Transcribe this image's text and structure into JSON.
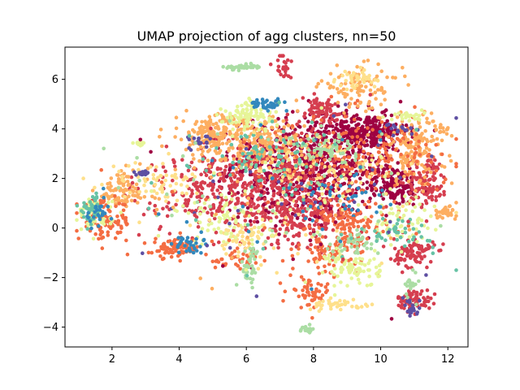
{
  "chart_data": {
    "type": "scatter",
    "title": "UMAP projection of agg clusters, nn=50",
    "xlabel": "",
    "ylabel": "",
    "xlim": [
      0.6,
      12.6
    ],
    "ylim": [
      -4.8,
      7.3
    ],
    "xticks": [
      2,
      4,
      6,
      8,
      10,
      12
    ],
    "yticks": [
      -4,
      -2,
      0,
      2,
      4,
      6
    ],
    "grid": false,
    "colors": [
      "#9e0142",
      "#d53e4f",
      "#f46d43",
      "#fdae61",
      "#fee08b",
      "#e6f598",
      "#abdda4",
      "#66c2a5",
      "#3288bd",
      "#5e4fa2"
    ],
    "clusters": [
      {
        "cx": 8.0,
        "cy": 2.6,
        "sx": 1.2,
        "sy": 1.0,
        "n": 700,
        "c": 0
      },
      {
        "cx": 9.6,
        "cy": 3.9,
        "sx": 0.6,
        "sy": 0.35,
        "n": 220,
        "c": 0
      },
      {
        "cx": 10.4,
        "cy": 1.7,
        "sx": 0.4,
        "sy": 0.4,
        "n": 140,
        "c": 0
      },
      {
        "cx": 11.4,
        "cy": 1.9,
        "sx": 0.3,
        "sy": 0.5,
        "n": 100,
        "c": 1
      },
      {
        "cx": 7.6,
        "cy": 0.6,
        "sx": 0.8,
        "sy": 0.6,
        "n": 220,
        "c": 1
      },
      {
        "cx": 6.5,
        "cy": 2.2,
        "sx": 1.2,
        "sy": 0.9,
        "n": 320,
        "c": 1
      },
      {
        "cx": 5.0,
        "cy": 1.3,
        "sx": 1.2,
        "sy": 0.8,
        "n": 180,
        "c": 1
      },
      {
        "cx": 11.0,
        "cy": -1.0,
        "sx": 0.3,
        "sy": 0.3,
        "n": 90,
        "c": 1
      },
      {
        "cx": 11.0,
        "cy": -2.9,
        "sx": 0.25,
        "sy": 0.2,
        "n": 70,
        "c": 1
      },
      {
        "cx": 8.2,
        "cy": 4.7,
        "sx": 0.4,
        "sy": 0.3,
        "n": 80,
        "c": 1
      },
      {
        "cx": 6.3,
        "cy": 3.4,
        "sx": 0.9,
        "sy": 0.6,
        "n": 260,
        "c": 3
      },
      {
        "cx": 5.0,
        "cy": 3.9,
        "sx": 0.5,
        "sy": 0.35,
        "n": 120,
        "c": 3
      },
      {
        "cx": 11.0,
        "cy": 3.2,
        "sx": 0.5,
        "sy": 0.7,
        "n": 150,
        "c": 3
      },
      {
        "cx": 2.3,
        "cy": 1.5,
        "sx": 0.4,
        "sy": 0.4,
        "n": 90,
        "c": 3
      },
      {
        "cx": 9.4,
        "cy": 5.7,
        "sx": 0.6,
        "sy": 0.4,
        "n": 90,
        "c": 3
      },
      {
        "cx": 11.9,
        "cy": 0.6,
        "sx": 0.2,
        "sy": 0.15,
        "n": 30,
        "c": 3
      },
      {
        "cx": 1.8,
        "cy": 0.3,
        "sx": 0.4,
        "sy": 0.4,
        "n": 110,
        "c": 2
      },
      {
        "cx": 3.9,
        "cy": -0.8,
        "sx": 0.35,
        "sy": 0.2,
        "n": 80,
        "c": 2
      },
      {
        "cx": 5.8,
        "cy": -1.3,
        "sx": 0.4,
        "sy": 0.2,
        "n": 40,
        "c": 2
      },
      {
        "cx": 7.9,
        "cy": -2.6,
        "sx": 0.3,
        "sy": 0.3,
        "n": 50,
        "c": 2
      },
      {
        "cx": 9.6,
        "cy": 2.9,
        "sx": 1.2,
        "sy": 0.8,
        "n": 180,
        "c": 2
      },
      {
        "cx": 8.6,
        "cy": -1.0,
        "sx": 0.5,
        "sy": 0.4,
        "n": 90,
        "c": 2
      },
      {
        "cx": 9.0,
        "cy": 0.3,
        "sx": 0.6,
        "sy": 0.4,
        "n": 100,
        "c": 2
      },
      {
        "cx": 6.1,
        "cy": 4.5,
        "sx": 0.4,
        "sy": 0.3,
        "n": 90,
        "c": 5
      },
      {
        "cx": 9.2,
        "cy": -1.6,
        "sx": 0.4,
        "sy": 0.4,
        "n": 80,
        "c": 5
      },
      {
        "cx": 1.5,
        "cy": 0.5,
        "sx": 0.25,
        "sy": 0.35,
        "n": 50,
        "c": 5
      },
      {
        "cx": 5.5,
        "cy": 0.3,
        "sx": 0.8,
        "sy": 0.5,
        "n": 80,
        "c": 5
      },
      {
        "cx": 10.6,
        "cy": 0.2,
        "sx": 0.5,
        "sy": 0.5,
        "n": 60,
        "c": 5
      },
      {
        "cx": 9.3,
        "cy": 6.0,
        "sx": 0.3,
        "sy": 0.2,
        "n": 40,
        "c": 4
      },
      {
        "cx": 6.0,
        "cy": -0.5,
        "sx": 0.6,
        "sy": 0.4,
        "n": 60,
        "c": 4
      },
      {
        "cx": 8.8,
        "cy": -3.1,
        "sx": 0.5,
        "sy": 0.1,
        "n": 40,
        "c": 4
      },
      {
        "cx": 3.3,
        "cy": 1.9,
        "sx": 0.7,
        "sy": 0.4,
        "n": 60,
        "c": 4
      },
      {
        "cx": 8.5,
        "cy": 2.2,
        "sx": 1.0,
        "sy": 0.8,
        "n": 80,
        "c": 4
      },
      {
        "cx": 6.1,
        "cy": -1.5,
        "sx": 0.15,
        "sy": 0.4,
        "n": 40,
        "c": 6
      },
      {
        "cx": 8.3,
        "cy": 3.2,
        "sx": 0.5,
        "sy": 0.3,
        "n": 60,
        "c": 6
      },
      {
        "cx": 9.2,
        "cy": -0.6,
        "sx": 0.4,
        "sy": 0.2,
        "n": 40,
        "c": 6
      },
      {
        "cx": 7.8,
        "cy": -4.1,
        "sx": 0.12,
        "sy": 0.08,
        "n": 15,
        "c": 6
      },
      {
        "cx": 10.9,
        "cy": -2.2,
        "sx": 0.1,
        "sy": 0.3,
        "n": 20,
        "c": 6
      },
      {
        "cx": 1.4,
        "cy": 0.8,
        "sx": 0.15,
        "sy": 0.3,
        "n": 40,
        "c": 7
      },
      {
        "cx": 6.6,
        "cy": 3.0,
        "sx": 0.8,
        "sy": 0.5,
        "n": 60,
        "c": 7
      },
      {
        "cx": 10.6,
        "cy": -0.2,
        "sx": 0.5,
        "sy": 0.3,
        "n": 40,
        "c": 7
      },
      {
        "cx": 6.6,
        "cy": 5.0,
        "sx": 0.3,
        "sy": 0.1,
        "n": 40,
        "c": 8
      },
      {
        "cx": 4.3,
        "cy": -0.7,
        "sx": 0.2,
        "sy": 0.2,
        "n": 30,
        "c": 8
      },
      {
        "cx": 8.6,
        "cy": 1.3,
        "sx": 0.8,
        "sy": 0.5,
        "n": 40,
        "c": 8
      },
      {
        "cx": 1.6,
        "cy": 0.6,
        "sx": 0.2,
        "sy": 0.3,
        "n": 25,
        "c": 8
      },
      {
        "cx": 2.9,
        "cy": 2.2,
        "sx": 0.12,
        "sy": 0.05,
        "n": 20,
        "c": 9
      },
      {
        "cx": 4.7,
        "cy": 3.5,
        "sx": 0.2,
        "sy": 0.15,
        "n": 20,
        "c": 9
      },
      {
        "cx": 10.9,
        "cy": -3.2,
        "sx": 0.15,
        "sy": 0.2,
        "n": 20,
        "c": 9
      },
      {
        "cx": 10.7,
        "cy": 3.9,
        "sx": 0.3,
        "sy": 0.2,
        "n": 15,
        "c": 9
      },
      {
        "cx": 5.8,
        "cy": 6.5,
        "sx": 0.25,
        "sy": 0.05,
        "n": 40,
        "c": 6
      },
      {
        "cx": 7.1,
        "cy": 6.6,
        "sx": 0.12,
        "sy": 0.3,
        "n": 25,
        "c": 1
      },
      {
        "cx": 2.8,
        "cy": 3.4,
        "sx": 0.1,
        "sy": 0.05,
        "n": 15,
        "c": 5
      },
      {
        "cx": 10.8,
        "cy": 4.5,
        "sx": 0.25,
        "sy": 0.1,
        "n": 25,
        "c": 5
      },
      {
        "cx": 11.8,
        "cy": 4.0,
        "sx": 0.1,
        "sy": 0.15,
        "n": 15,
        "c": 3
      },
      {
        "cx": 7.0,
        "cy": 1.5,
        "sx": 2.2,
        "sy": 1.6,
        "n": 300,
        "c": -1
      }
    ]
  }
}
